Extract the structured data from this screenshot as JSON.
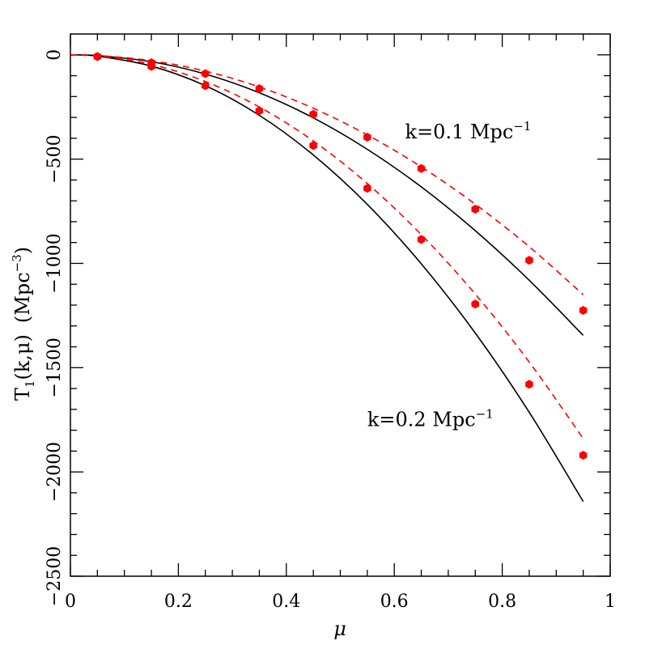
{
  "chart_data": {
    "type": "line",
    "xlabel": "μ",
    "ylabel": "T1(k,μ)  (Mpc-3)",
    "ylabel_parts": {
      "t": "T",
      "t_sub": "1",
      "args": "(k,μ)",
      "units": "(Mpc",
      "units_sup": "−3",
      "units_close": ")"
    },
    "xlim": [
      0,
      1
    ],
    "ylim": [
      -2500,
      100
    ],
    "xticks": [
      0,
      0.2,
      0.4,
      0.6,
      0.8,
      1
    ],
    "xtick_labels": [
      "0",
      "0.2",
      "0.4",
      "0.6",
      "0.8",
      "1"
    ],
    "yticks": [
      0,
      -500,
      -1000,
      -1500,
      -2000,
      -2500
    ],
    "ytick_labels": [
      "0",
      "−500",
      "−1000",
      "−1500",
      "−2000",
      "−2500"
    ],
    "grid": false,
    "annotations": [
      {
        "id": "k01",
        "text": "k=0.1  Mpc",
        "sup": "−1",
        "x": 0.62,
        "y": -400
      },
      {
        "id": "k02",
        "text": "k=0.2  Mpc",
        "sup": "−1",
        "x": 0.55,
        "y": -1780
      }
    ],
    "series": [
      {
        "id": "k01-solid",
        "style": "solid",
        "color": "#000000",
        "x": [
          0,
          0.05,
          0.15,
          0.25,
          0.35,
          0.45,
          0.55,
          0.65,
          0.75,
          0.85,
          0.95
        ],
        "y": [
          0,
          -3.5,
          -33,
          -92,
          -182,
          -302,
          -453,
          -633,
          -843,
          -1081,
          -1345
        ]
      },
      {
        "id": "k01-dashed",
        "style": "dashed",
        "color": "#ff0000",
        "x": [
          0,
          0.05,
          0.15,
          0.25,
          0.35,
          0.45,
          0.55,
          0.65,
          0.75,
          0.85,
          0.95
        ],
        "y": [
          0,
          -3,
          -28,
          -78,
          -154,
          -256,
          -384,
          -537,
          -716,
          -920,
          -1150
        ]
      },
      {
        "id": "k01-points",
        "style": "points",
        "color": "#ff0000",
        "x": [
          0.05,
          0.15,
          0.25,
          0.35,
          0.45,
          0.55,
          0.65,
          0.75,
          0.85,
          0.95
        ],
        "y": [
          -8,
          -38,
          -90,
          -162,
          -285,
          -395,
          -545,
          -740,
          -985,
          -1225
        ]
      },
      {
        "id": "k02-solid",
        "style": "solid",
        "color": "#000000",
        "x": [
          0,
          0.05,
          0.15,
          0.25,
          0.35,
          0.45,
          0.55,
          0.65,
          0.75,
          0.85,
          0.95
        ],
        "y": [
          0,
          -6,
          -54,
          -148,
          -290,
          -480,
          -717,
          -1002,
          -1334,
          -1714,
          -2142
        ]
      },
      {
        "id": "k02-dashed",
        "style": "dashed",
        "color": "#ff0000",
        "x": [
          0,
          0.05,
          0.15,
          0.25,
          0.35,
          0.45,
          0.55,
          0.65,
          0.75,
          0.85,
          0.95
        ],
        "y": [
          0,
          -5,
          -46,
          -128,
          -250,
          -413,
          -617,
          -862,
          -1147,
          -1473,
          -1840
        ]
      },
      {
        "id": "k02-points",
        "style": "points",
        "color": "#ff0000",
        "x": [
          0.05,
          0.15,
          0.25,
          0.35,
          0.45,
          0.55,
          0.65,
          0.75,
          0.85,
          0.95
        ],
        "y": [
          -8,
          -55,
          -148,
          -268,
          -435,
          -640,
          -885,
          -1195,
          -1580,
          -1920
        ]
      }
    ]
  }
}
